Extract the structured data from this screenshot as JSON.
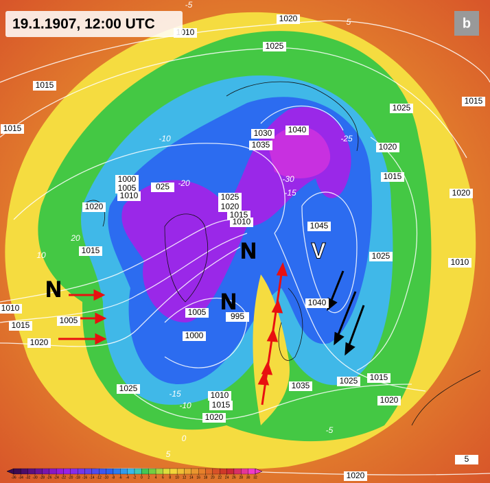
{
  "header": {
    "title": "19.1.1907, 12:00 UTC",
    "panel": "b"
  },
  "pressure_systems": [
    "N",
    "N",
    "N",
    "V"
  ],
  "isobar_labels": [
    "1010",
    "1020",
    "1025",
    "1015",
    "1015",
    "1025",
    "1015",
    "1020",
    "1015",
    "1020",
    "1030",
    "1035",
    "1040",
    "1000",
    "1005",
    "1010",
    "025",
    "1020",
    "1025",
    "1020",
    "1015",
    "1010",
    "1045",
    "1015",
    "1010",
    "1025",
    "1040",
    "1010",
    "1005",
    "1015",
    "1020",
    "1005",
    "995",
    "1000",
    "1025",
    "1010",
    "1015",
    "1035",
    "1025",
    "1015",
    "1020",
    "1020",
    "1020",
    "5"
  ],
  "temperature_labels": [
    "5",
    "-10",
    "-20",
    "-25",
    "-30",
    "-15",
    "20",
    "10",
    "-15",
    "-10",
    "0",
    "5",
    "-5",
    "-5"
  ],
  "colorbar": {
    "ticks": [
      -36,
      -34,
      -32,
      -30,
      -28,
      -26,
      -24,
      -22,
      -20,
      -18,
      -16,
      -14,
      -12,
      -10,
      -8,
      -6,
      -4,
      -2,
      0,
      2,
      4,
      6,
      8,
      10,
      12,
      14,
      16,
      18,
      20,
      22,
      24,
      26,
      28,
      30,
      32
    ]
  }
}
